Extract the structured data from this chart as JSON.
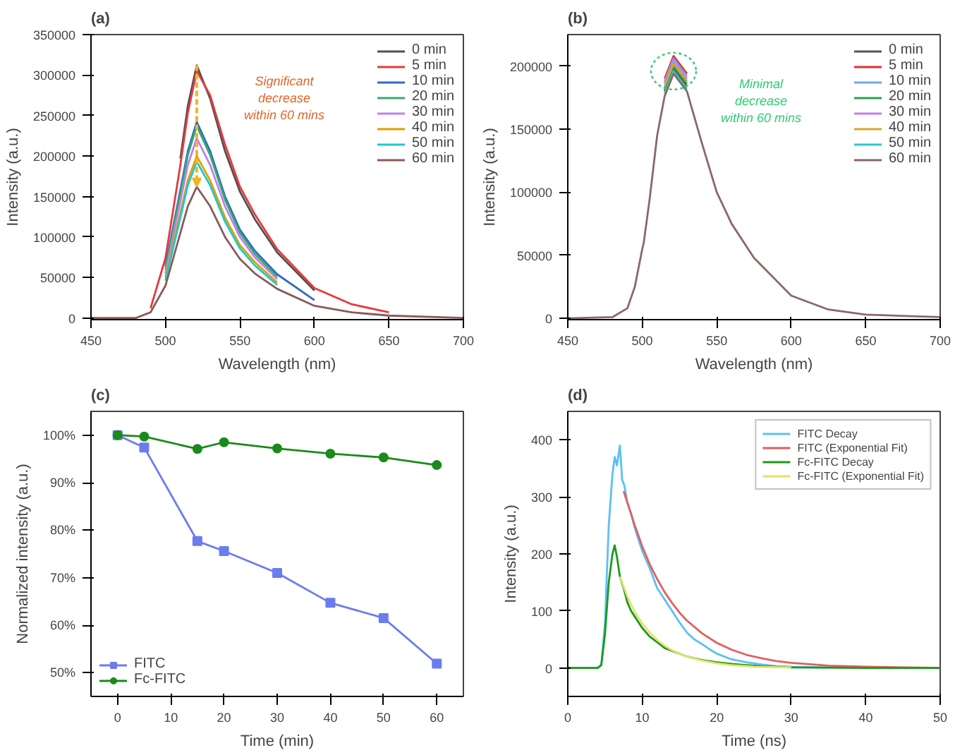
{
  "chart_data": [
    {
      "type": "line",
      "title": "(a)",
      "xlabel": "Wavelength (nm)",
      "ylabel": "Intensity (a.u.)",
      "xlim": [
        450,
        700
      ],
      "xticks": [
        450,
        500,
        550,
        600,
        650,
        700
      ],
      "ylim": [
        -2000,
        350000
      ],
      "yticks": [
        0,
        50000,
        100000,
        150000,
        200000,
        250000,
        300000,
        350000
      ],
      "legend": "top right",
      "annotations": [
        "Significant\ndecrease\nwithin 60 mins"
      ],
      "x": [
        450,
        480,
        490,
        500,
        510,
        515,
        521,
        530,
        540,
        550,
        560,
        575,
        600,
        625,
        650,
        700
      ],
      "series": [
        {
          "name": "0 min",
          "color": "#505050",
          "values": [
            null,
            null,
            null,
            null,
            197000,
            262000,
            312000,
            271000,
            206000,
            156000,
            122000,
            81000,
            34000,
            null,
            null,
            null
          ]
        },
        {
          "name": "5 min",
          "color": "#e8383d",
          "values": [
            null,
            null,
            12000,
            74000,
            189000,
            253000,
            305000,
            275000,
            214000,
            162000,
            128000,
            85000,
            37000,
            17000,
            7000,
            null
          ]
        },
        {
          "name": "10 min",
          "color": "#2b6cc4",
          "values": [
            null,
            null,
            null,
            64000,
            158000,
            206000,
            242000,
            206000,
            150000,
            109000,
            83000,
            54000,
            22000,
            null,
            null,
            null
          ]
        },
        {
          "name": "20 min",
          "color": "#3aaa6a",
          "values": [
            null,
            null,
            null,
            60000,
            153000,
            201000,
            237000,
            201000,
            146000,
            105000,
            79000,
            51000,
            null,
            null,
            null,
            null
          ]
        },
        {
          "name": "30 min",
          "color": "#c080f0",
          "values": [
            null,
            null,
            null,
            55000,
            144000,
            189000,
            222000,
            189000,
            138000,
            100000,
            75000,
            48000,
            null,
            null,
            null,
            null
          ]
        },
        {
          "name": "40 min",
          "color": "#e0a000",
          "values": [
            null,
            null,
            null,
            50000,
            130000,
            170000,
            200000,
            170000,
            124000,
            90000,
            69000,
            44000,
            null,
            null,
            null,
            null
          ]
        },
        {
          "name": "50 min",
          "color": "#20c8c8",
          "values": [
            null,
            null,
            null,
            46000,
            124000,
            164000,
            193000,
            164000,
            119000,
            86000,
            65000,
            41000,
            null,
            null,
            null,
            null
          ]
        },
        {
          "name": "60 min",
          "color": "#8a5a5a",
          "values": [
            0,
            0,
            7000,
            40000,
            105000,
            138000,
            162000,
            138000,
            100000,
            73000,
            55000,
            36000,
            15000,
            7000,
            3000,
            0
          ]
        }
      ]
    },
    {
      "type": "line",
      "title": "(b)",
      "xlabel": "Wavelength (nm)",
      "ylabel": "Intensity (a.u.)",
      "xlim": [
        450,
        700
      ],
      "xticks": [
        450,
        500,
        550,
        600,
        650,
        700
      ],
      "ylim": [
        -1000,
        225000
      ],
      "yticks": [
        0,
        50000,
        100000,
        150000,
        200000
      ],
      "legend": "top right",
      "annotations": [
        "Minimal\ndecrease\nwithin 60 mins"
      ],
      "x": [
        450,
        480,
        490,
        495,
        500,
        501,
        505,
        510,
        515,
        521,
        530,
        540,
        550,
        560,
        575,
        600,
        625,
        650,
        700
      ],
      "series": [
        {
          "name": "0 min",
          "color": "#555555",
          "x": [
            515,
            521,
            530
          ],
          "values": [
            180000,
            198000,
            184000
          ]
        },
        {
          "name": "5 min",
          "color": "#e03030",
          "x": [
            515,
            521,
            530
          ],
          "values": [
            190000,
            208000,
            194000
          ]
        },
        {
          "name": "10 min",
          "color": "#6fa8e8",
          "x": [
            515,
            521,
            530
          ],
          "values": [
            188000,
            206000,
            192000
          ]
        },
        {
          "name": "20 min",
          "color": "#2ca050",
          "x": [
            515,
            521,
            530
          ],
          "values": [
            182000,
            200000,
            186000
          ]
        },
        {
          "name": "30 min",
          "color": "#c080f0",
          "x": [
            515,
            521,
            530
          ],
          "values": [
            186000,
            204000,
            190000
          ]
        },
        {
          "name": "40 min",
          "color": "#d4a830",
          "x": [
            515,
            521,
            530
          ],
          "values": [
            184000,
            202000,
            188000
          ]
        },
        {
          "name": "50 min",
          "color": "#30c8d0",
          "x": [
            515,
            521,
            530
          ],
          "values": [
            178000,
            196000,
            182000
          ]
        },
        {
          "name": "60 min",
          "color": "#8a6868",
          "values": [
            0,
            1000,
            8000,
            25000,
            55000,
            60000,
            95000,
            145000,
            176000,
            194000,
            180000,
            139000,
            100000,
            75000,
            48000,
            18000,
            7000,
            3000,
            1000
          ]
        }
      ]
    },
    {
      "type": "line",
      "title": "(c)",
      "xlabel": "Time (min)",
      "ylabel": "Normalized intensity (a.u.)",
      "xlim": [
        -5,
        65
      ],
      "xticks": [
        0,
        10,
        20,
        30,
        40,
        50,
        60
      ],
      "ylim": [
        45,
        105
      ],
      "yticks": [
        {
          "value": 50,
          "label": "50%"
        },
        {
          "value": 60,
          "label": "60%"
        },
        {
          "value": 70,
          "label": "70%"
        },
        {
          "value": 80,
          "label": "80%"
        },
        {
          "value": 90,
          "label": "90%"
        },
        {
          "value": 100,
          "label": "100%"
        }
      ],
      "legend": "bottom left",
      "x": [
        0,
        5,
        15,
        20,
        30,
        40,
        50,
        60
      ],
      "series": [
        {
          "name": "FITC",
          "color": "#6a7cf0",
          "marker": "square",
          "values": [
            100,
            97.4,
            77.7,
            75.6,
            71.0,
            64.7,
            61.5,
            51.9
          ]
        },
        {
          "name": "Fc-FITC",
          "color": "#1a8a1a",
          "marker": "circle",
          "values": [
            100,
            99.7,
            97.1,
            98.5,
            97.2,
            96.1,
            95.3,
            93.7
          ]
        }
      ]
    },
    {
      "type": "line",
      "title": "(d)",
      "xlabel": "Time (ns)",
      "ylabel": "Intensity (a.u.)",
      "xlim": [
        0,
        50
      ],
      "xticks": [
        0,
        10,
        20,
        30,
        40,
        50
      ],
      "ylim": [
        -50,
        450
      ],
      "yticks": [
        0,
        100,
        200,
        300,
        400
      ],
      "legend": "top right",
      "series": [
        {
          "name": "FITC Decay",
          "color": "#5bc0f5",
          "x": [
            0,
            4,
            4.5,
            5,
            5.5,
            6,
            6.3,
            6.6,
            7,
            7.3,
            7.6,
            8,
            8.5,
            9,
            10,
            11,
            12,
            13,
            14,
            15,
            16,
            17,
            18,
            19,
            20,
            22,
            24,
            26,
            28,
            30,
            35
          ],
          "values": [
            0,
            0,
            5,
            80,
            250,
            340,
            370,
            355,
            390,
            330,
            320,
            290,
            270,
            245,
            205,
            175,
            140,
            120,
            100,
            80,
            62,
            50,
            42,
            33,
            25,
            15,
            10,
            6,
            3,
            2,
            1
          ]
        },
        {
          "name": "FITC (Exponential Fit)",
          "color": "#e06060",
          "x": [
            7.5,
            8,
            9,
            10,
            11,
            12,
            13,
            14,
            15,
            16,
            18,
            20,
            22,
            24,
            26,
            28,
            30,
            35,
            40,
            50
          ],
          "values": [
            310,
            290,
            250,
            213,
            182,
            156,
            133,
            114,
            97,
            83,
            61,
            44,
            32,
            23,
            17,
            12,
            9,
            4,
            2,
            0
          ]
        },
        {
          "name": "Fc-FITC Decay",
          "color": "#1a9a1a",
          "x": [
            0,
            4,
            4.5,
            5,
            5.5,
            6,
            6.3,
            6.6,
            7,
            7.5,
            8,
            8.5,
            9,
            10,
            11,
            12,
            13,
            14,
            15,
            16,
            17,
            18,
            20,
            22,
            24,
            26,
            28,
            30,
            40,
            50
          ],
          "values": [
            0,
            0,
            5,
            60,
            150,
            200,
            215,
            195,
            160,
            140,
            115,
            100,
            90,
            70,
            55,
            45,
            35,
            30,
            25,
            20,
            17,
            14,
            10,
            7,
            5,
            3,
            2,
            1,
            0,
            0
          ]
        },
        {
          "name": "Fc-FITC (Exponential Fit)",
          "color": "#e8e070",
          "x": [
            7,
            8,
            9,
            10,
            11,
            12,
            13,
            14,
            15,
            16,
            18,
            20,
            22,
            25,
            30
          ],
          "values": [
            160,
            125,
            98,
            78,
            62,
            49,
            39,
            31,
            25,
            20,
            13,
            8,
            5,
            2,
            1
          ]
        }
      ]
    }
  ]
}
